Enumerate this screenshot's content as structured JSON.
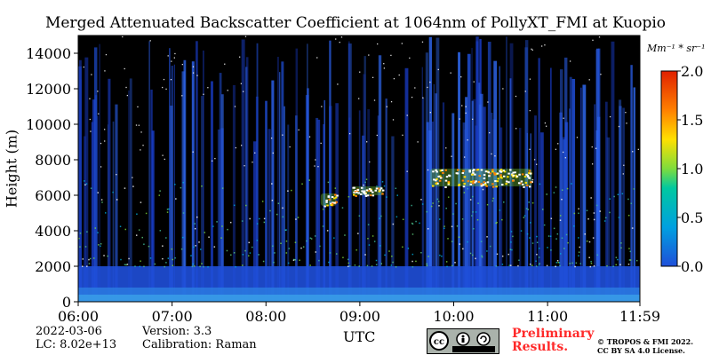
{
  "chart_data": {
    "type": "heatmap",
    "title": "Merged Attenuated Backscatter Coefficient at 1064nm of PollyXT_FMI at Kuopio",
    "xlabel": "UTC",
    "ylabel": "Height (m)",
    "x_ticks": [
      "06:00",
      "07:00",
      "08:00",
      "09:00",
      "10:00",
      "11:00",
      "11:59"
    ],
    "x_range": [
      "06:00",
      "11:59"
    ],
    "y_ticks": [
      0,
      2000,
      4000,
      6000,
      8000,
      10000,
      12000,
      14000
    ],
    "ylim": [
      0,
      15000
    ],
    "colorbar": {
      "unit": "Mm⁻¹ * sr⁻¹",
      "range": [
        0.0,
        2.0
      ],
      "ticks": [
        "0.0",
        "0.5",
        "1.0",
        "1.5",
        "2.0"
      ],
      "colormap": [
        "#1f4fd9",
        "#00a0e0",
        "#00c8a0",
        "#7fdc3c",
        "#ffe000",
        "#ff8000",
        "#e02000"
      ]
    },
    "features": {
      "boundary_layer_top_m": 2000,
      "cloud_layers": [
        {
          "start": "08:35",
          "end": "08:45",
          "base_m": 5400,
          "top_m": 6100
        },
        {
          "start": "08:55",
          "end": "09:15",
          "base_m": 6000,
          "top_m": 6500
        },
        {
          "start": "09:45",
          "end": "10:50",
          "base_m": 6500,
          "top_m": 7500
        }
      ]
    }
  },
  "footer": {
    "date": "2022-03-06",
    "lc": "LC: 8.02e+13",
    "version": "Version: 3.3",
    "calibration": "Calibration: Raman",
    "preliminary_line1": "Preliminary",
    "preliminary_line2": "Results.",
    "copyright_line1": "© TROPOS & FMI 2022.",
    "copyright_line2": "CC BY SA 4.0 License.",
    "license_badge": "cc-by-sa-icon"
  }
}
